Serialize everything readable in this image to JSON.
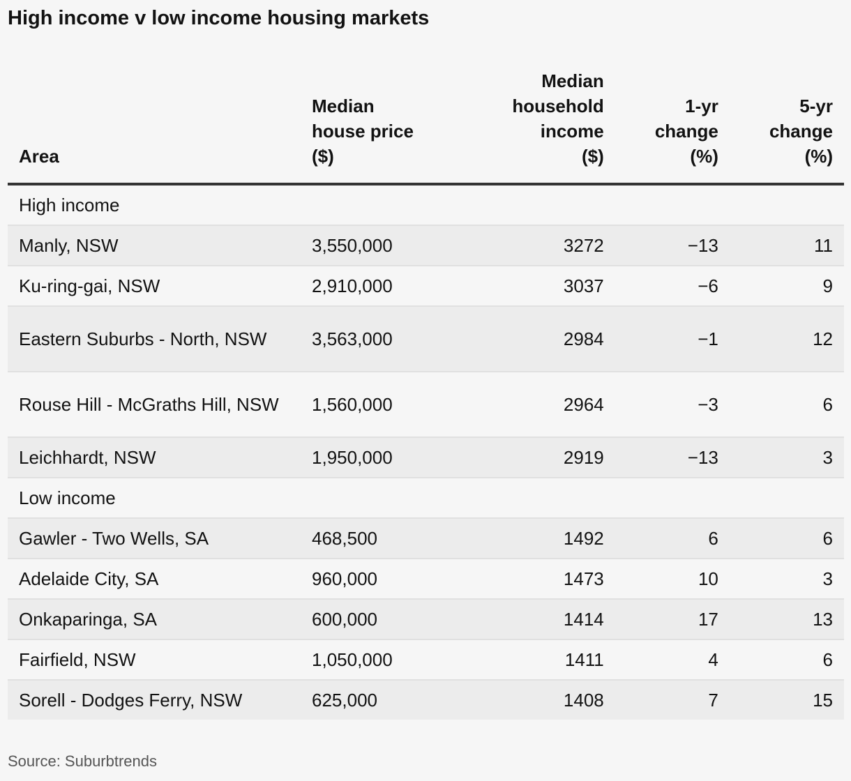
{
  "title": "High income v low income housing markets",
  "source": "Source: Suburbtrends",
  "chart_data": {
    "type": "table",
    "columns": [
      "Area",
      "Median house price ($)",
      "Median household income ($)",
      "1-yr change (%)",
      "5-yr change (%)"
    ],
    "groups": [
      {
        "label": "High income",
        "rows": [
          {
            "area": "Manly, NSW",
            "price": "3,550,000",
            "income": "3272",
            "change1": "−13",
            "change5": "11"
          },
          {
            "area": "Ku-ring-gai, NSW",
            "price": "2,910,000",
            "income": "3037",
            "change1": "−6",
            "change5": "9"
          },
          {
            "area": "Eastern Suburbs - North, NSW",
            "price": "3,563,000",
            "income": "2984",
            "change1": "−1",
            "change5": "12"
          },
          {
            "area": "Rouse Hill - McGraths Hill, NSW",
            "price": "1,560,000",
            "income": "2964",
            "change1": "−3",
            "change5": "6"
          },
          {
            "area": "Leichhardt, NSW",
            "price": "1,950,000",
            "income": "2919",
            "change1": "−13",
            "change5": "3"
          }
        ]
      },
      {
        "label": "Low income",
        "rows": [
          {
            "area": "Gawler - Two Wells, SA",
            "price": "468,500",
            "income": "1492",
            "change1": "6",
            "change5": "6"
          },
          {
            "area": "Adelaide City, SA",
            "price": "960,000",
            "income": "1473",
            "change1": "10",
            "change5": "3"
          },
          {
            "area": "Onkaparinga, SA",
            "price": "600,000",
            "income": "1414",
            "change1": "17",
            "change5": "13"
          },
          {
            "area": "Fairfield, NSW",
            "price": "1,050,000",
            "income": "1411",
            "change1": "4",
            "change5": "6"
          },
          {
            "area": "Sorell - Dodges Ferry, NSW",
            "price": "625,000",
            "income": "1408",
            "change1": "7",
            "change5": "15"
          }
        ]
      }
    ]
  },
  "header": {
    "area": "Area",
    "price_l1": "Median",
    "price_l2": "house price",
    "price_l3": "($)",
    "income_l1": "Median",
    "income_l2": "household",
    "income_l3": "income",
    "income_l4": "($)",
    "change1_l1": "1-yr",
    "change1_l2": "change",
    "change1_l3": "(%)",
    "change5_l1": "5-yr",
    "change5_l2": "change",
    "change5_l3": "(%)"
  }
}
